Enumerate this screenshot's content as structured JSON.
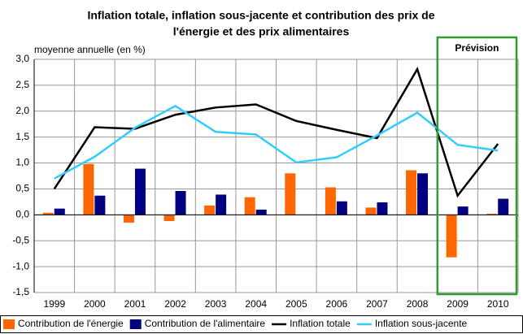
{
  "chart_data": {
    "type": "bar",
    "title": [
      "Inflation totale, inflation sous-jacente et contribution des prix de",
      "l'énergie et des prix alimentaires"
    ],
    "y_label": "moyenne annuelle (en %)",
    "categories": [
      "1999",
      "2000",
      "2001",
      "2002",
      "2003",
      "2004",
      "2005",
      "2006",
      "2007",
      "2008",
      "2009",
      "2010"
    ],
    "series": [
      {
        "name": "Contribution de l'énergie",
        "type": "bar",
        "color": "#ff6600",
        "values": [
          0.04,
          0.98,
          -0.15,
          -0.12,
          0.18,
          0.34,
          0.8,
          0.53,
          0.14,
          0.86,
          -0.82,
          0.02
        ]
      },
      {
        "name": "Contribution de l'alimentaire",
        "type": "bar",
        "color": "#000080",
        "values": [
          0.12,
          0.37,
          0.89,
          0.46,
          0.39,
          0.1,
          0.0,
          0.26,
          0.24,
          0.8,
          0.16,
          0.31
        ]
      },
      {
        "name": "Inflation totale",
        "type": "line",
        "color": "#000000",
        "values": [
          0.5,
          1.69,
          1.66,
          1.93,
          2.07,
          2.13,
          1.81,
          1.64,
          1.48,
          2.81,
          0.37,
          1.37
        ]
      },
      {
        "name": "Inflation sous-jacente",
        "type": "line",
        "color": "#33ccff",
        "values": [
          0.7,
          1.12,
          1.68,
          2.1,
          1.6,
          1.55,
          1.01,
          1.11,
          1.53,
          1.97,
          1.35,
          1.24
        ]
      }
    ],
    "ylim": [
      -1.5,
      3.0
    ],
    "yticks": [
      {
        "value": -1.5,
        "label": "-1,5"
      },
      {
        "value": -1.0,
        "label": "-1,0"
      },
      {
        "value": -0.5,
        "label": "-0,5"
      },
      {
        "value": 0,
        "label": "0,0"
      },
      {
        "value": 0.5,
        "label": "0,5"
      },
      {
        "value": 1.0,
        "label": "1,0"
      },
      {
        "value": 1.5,
        "label": "1,5"
      },
      {
        "value": 2.0,
        "label": "2,0"
      },
      {
        "value": 2.5,
        "label": "2,5"
      },
      {
        "value": 3.0,
        "label": "3,0"
      }
    ],
    "grid": true,
    "legend": "bottom",
    "annotations": [
      {
        "text": "Prévision",
        "from": "2009",
        "to": "2010",
        "color": "#339933"
      }
    ]
  }
}
